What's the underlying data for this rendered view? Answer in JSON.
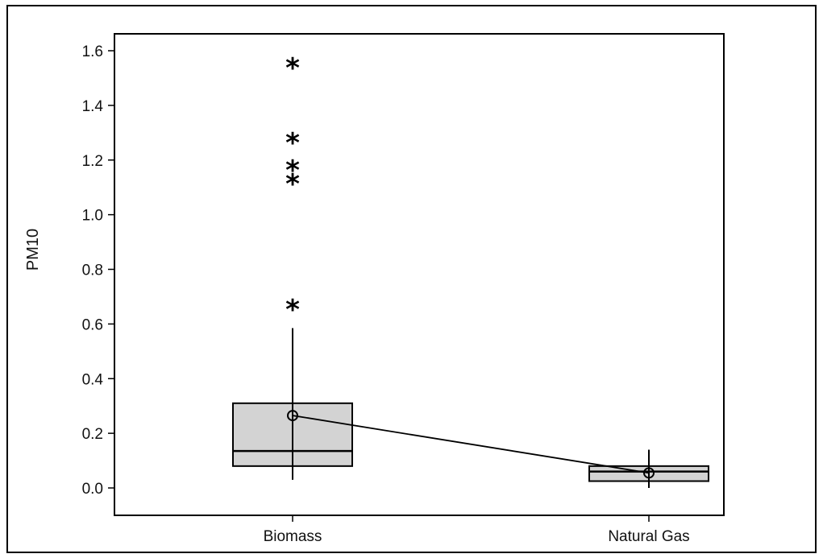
{
  "chart_data": {
    "type": "box",
    "ylabel": "PM10",
    "xlabel": "",
    "title": "",
    "ylim": [
      -0.1,
      1.65
    ],
    "yticks": [
      0.0,
      0.2,
      0.4,
      0.6,
      0.8,
      1.0,
      1.2,
      1.4,
      1.6
    ],
    "ytick_labels": [
      "0.0",
      "0.2",
      "0.4",
      "0.6",
      "0.8",
      "1.0",
      "1.2",
      "1.4",
      "1.6"
    ],
    "categories": [
      "Biomass",
      "Natural Gas"
    ],
    "boxes": [
      {
        "category": "Biomass",
        "whisker_low": 0.03,
        "q1": 0.08,
        "median": 0.135,
        "q3": 0.31,
        "whisker_high": 0.585,
        "mean": 0.265,
        "outliers": [
          0.68,
          1.14,
          1.19,
          1.29,
          1.565
        ]
      },
      {
        "category": "Natural Gas",
        "whisker_low": 0.0,
        "q1": 0.025,
        "median": 0.06,
        "q3": 0.08,
        "whisker_high": 0.14,
        "mean": 0.055,
        "outliers": []
      }
    ],
    "mean_connect_line": true,
    "grid": false,
    "colors": {
      "box_fill": "#d3d3d3",
      "stroke": "#000000"
    },
    "outlier_symbol": "*"
  }
}
